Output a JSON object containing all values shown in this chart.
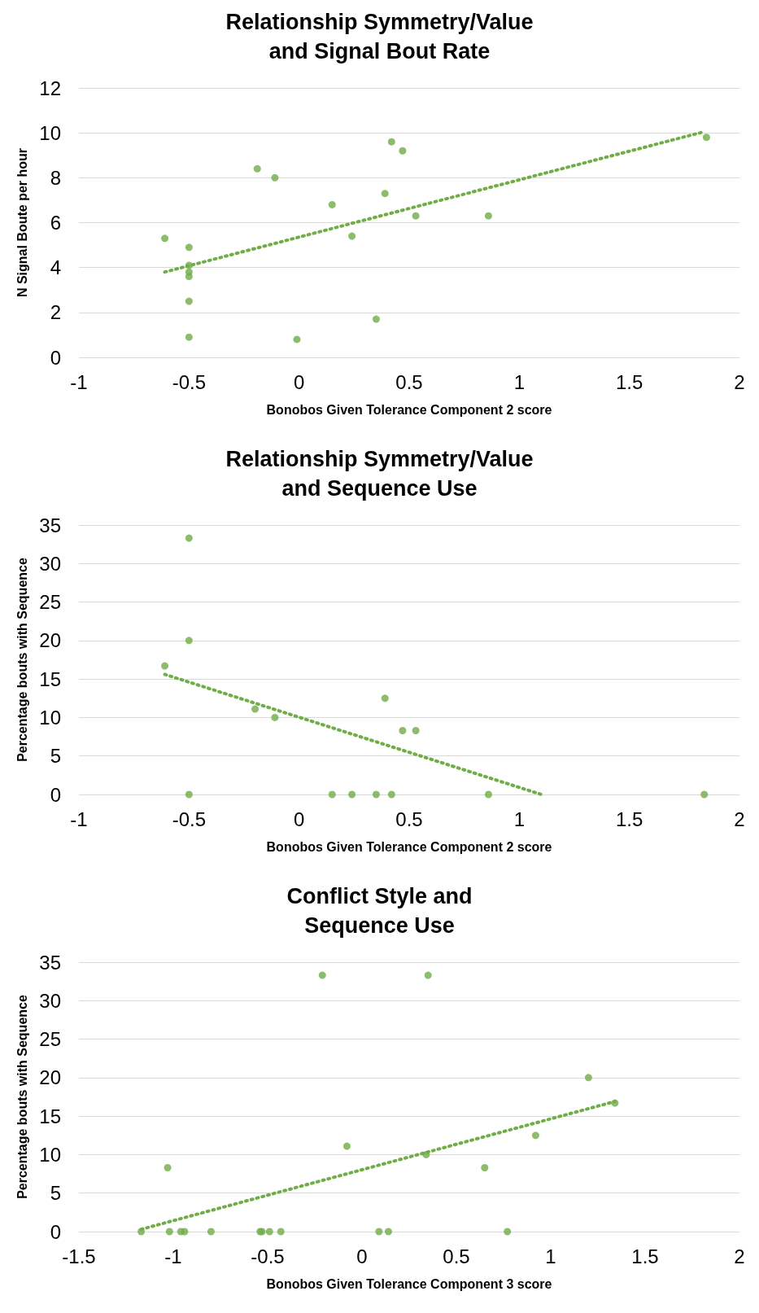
{
  "chart_data": [
    {
      "type": "scatter",
      "title": "Relationship Symmetry/Value\nand Signal Bout Rate",
      "xlabel": "Bonobos Given Tolerance Component 2 score",
      "ylabel": "N Signal Boute per hour",
      "xlim": [
        -1,
        2
      ],
      "xticks": [
        -1,
        -0.5,
        0,
        0.5,
        1,
        1.5,
        2
      ],
      "ylim": [
        0,
        12
      ],
      "yticks": [
        0,
        2,
        4,
        6,
        8,
        10,
        12
      ],
      "grid": "y",
      "marker": "circle",
      "series": [
        {
          "color": "#70ad47",
          "x": [
            -0.61,
            -0.5,
            -0.5,
            -0.5,
            -0.5,
            -0.5,
            -0.5,
            -0.19,
            -0.11,
            -0.01,
            0.15,
            0.24,
            0.35,
            0.39,
            0.42,
            0.47,
            0.53,
            0.86,
            1.85
          ],
          "values": [
            5.3,
            4.9,
            4.1,
            3.8,
            3.6,
            2.5,
            0.9,
            8.4,
            8.0,
            0.8,
            6.8,
            5.4,
            1.7,
            7.3,
            9.6,
            9.2,
            6.3,
            6.3,
            9.8
          ]
        },
        {
          "type": "line",
          "line_style": "dotted",
          "marker": "none",
          "color": "#70ad47",
          "x": [
            -0.61,
            1.84
          ],
          "values": [
            3.8,
            10.05
          ]
        }
      ]
    },
    {
      "type": "scatter",
      "title": "Relationship Symmetry/Value\nand Sequence Use",
      "xlabel": "Bonobos Given Tolerance Component 2 score",
      "ylabel": "Percentage bouts with Sequence",
      "xlim": [
        -1,
        2
      ],
      "xticks": [
        -1,
        -0.5,
        0,
        0.5,
        1,
        1.5,
        2
      ],
      "ylim": [
        0,
        35
      ],
      "yticks": [
        0,
        5,
        10,
        15,
        20,
        25,
        30,
        35
      ],
      "grid": "y",
      "marker": "circle",
      "series": [
        {
          "color": "#70ad47",
          "x": [
            -0.61,
            -0.5,
            -0.5,
            -0.5,
            -0.2,
            -0.11,
            0.15,
            0.24,
            0.35,
            0.39,
            0.42,
            0.47,
            0.53,
            0.86,
            1.84
          ],
          "values": [
            16.7,
            33.3,
            20,
            0,
            11.1,
            10,
            0,
            0,
            0,
            12.5,
            0,
            8.3,
            8.3,
            0,
            0
          ]
        },
        {
          "type": "line",
          "line_style": "dotted",
          "marker": "none",
          "color": "#70ad47",
          "x": [
            -0.61,
            1.1
          ],
          "values": [
            15.6,
            0
          ]
        }
      ]
    },
    {
      "type": "scatter",
      "title": "Conflict Style and\nSequence Use",
      "xlabel": "Bonobos Given Tolerance Component 3 score",
      "ylabel": "Percentage bouts with Sequence",
      "xlim": [
        -1.5,
        2
      ],
      "xticks": [
        -1.5,
        -1,
        -0.5,
        0,
        0.5,
        1,
        1.5,
        2
      ],
      "ylim": [
        0,
        35
      ],
      "yticks": [
        0,
        5,
        10,
        15,
        20,
        25,
        30,
        35
      ],
      "grid": "y",
      "marker": "circle",
      "series": [
        {
          "color": "#70ad47",
          "x": [
            -1.17,
            -1.03,
            -1.02,
            -0.96,
            -0.94,
            -0.8,
            -0.54,
            -0.53,
            -0.49,
            -0.43,
            -0.21,
            -0.08,
            0.09,
            0.14,
            0.34,
            0.35,
            0.65,
            0.77,
            0.92,
            1.2,
            1.34
          ],
          "values": [
            0,
            8.3,
            0,
            0,
            0,
            0,
            0,
            0,
            0,
            0,
            33.3,
            11.1,
            0,
            0,
            10,
            33.3,
            8.3,
            0,
            12.5,
            20,
            16.7
          ]
        },
        {
          "type": "line",
          "line_style": "dotted",
          "marker": "none",
          "color": "#70ad47",
          "x": [
            -1.17,
            1.34
          ],
          "values": [
            0.3,
            16.9
          ]
        }
      ]
    }
  ]
}
